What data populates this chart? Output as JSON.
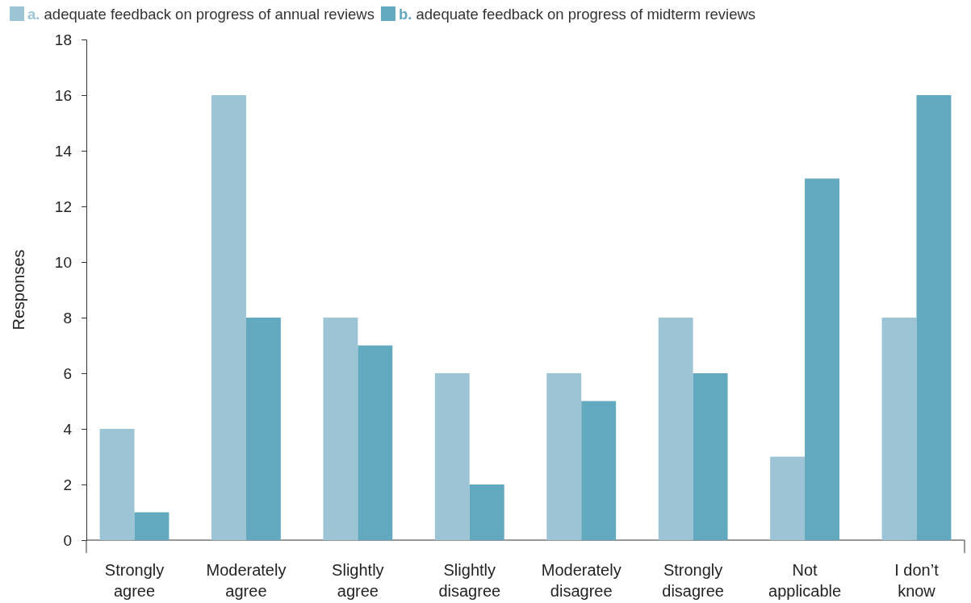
{
  "chart_data": {
    "type": "bar",
    "ylabel": "Responses",
    "categories": [
      "Strongly agree",
      "Moderately agree",
      "Slightly agree",
      "Slightly disagree",
      "Moderately disagree",
      "Strongly disagree",
      "Not applicable",
      "I don’t know"
    ],
    "series": [
      {
        "name": "a. adequate feedback on progress of annual reviews",
        "color": "#9dc4d5",
        "values": [
          4,
          16,
          8,
          6,
          6,
          8,
          3,
          8
        ]
      },
      {
        "name": "b. adequate feedback on progress of midterm reviews",
        "color": "#62a8bf",
        "values": [
          1,
          8,
          7,
          2,
          5,
          6,
          13,
          16
        ]
      }
    ],
    "ylim": [
      0,
      18
    ],
    "yticks": [
      0,
      2,
      4,
      6,
      8,
      10,
      12,
      14,
      16,
      18
    ],
    "grid": false,
    "legend": "top left"
  }
}
